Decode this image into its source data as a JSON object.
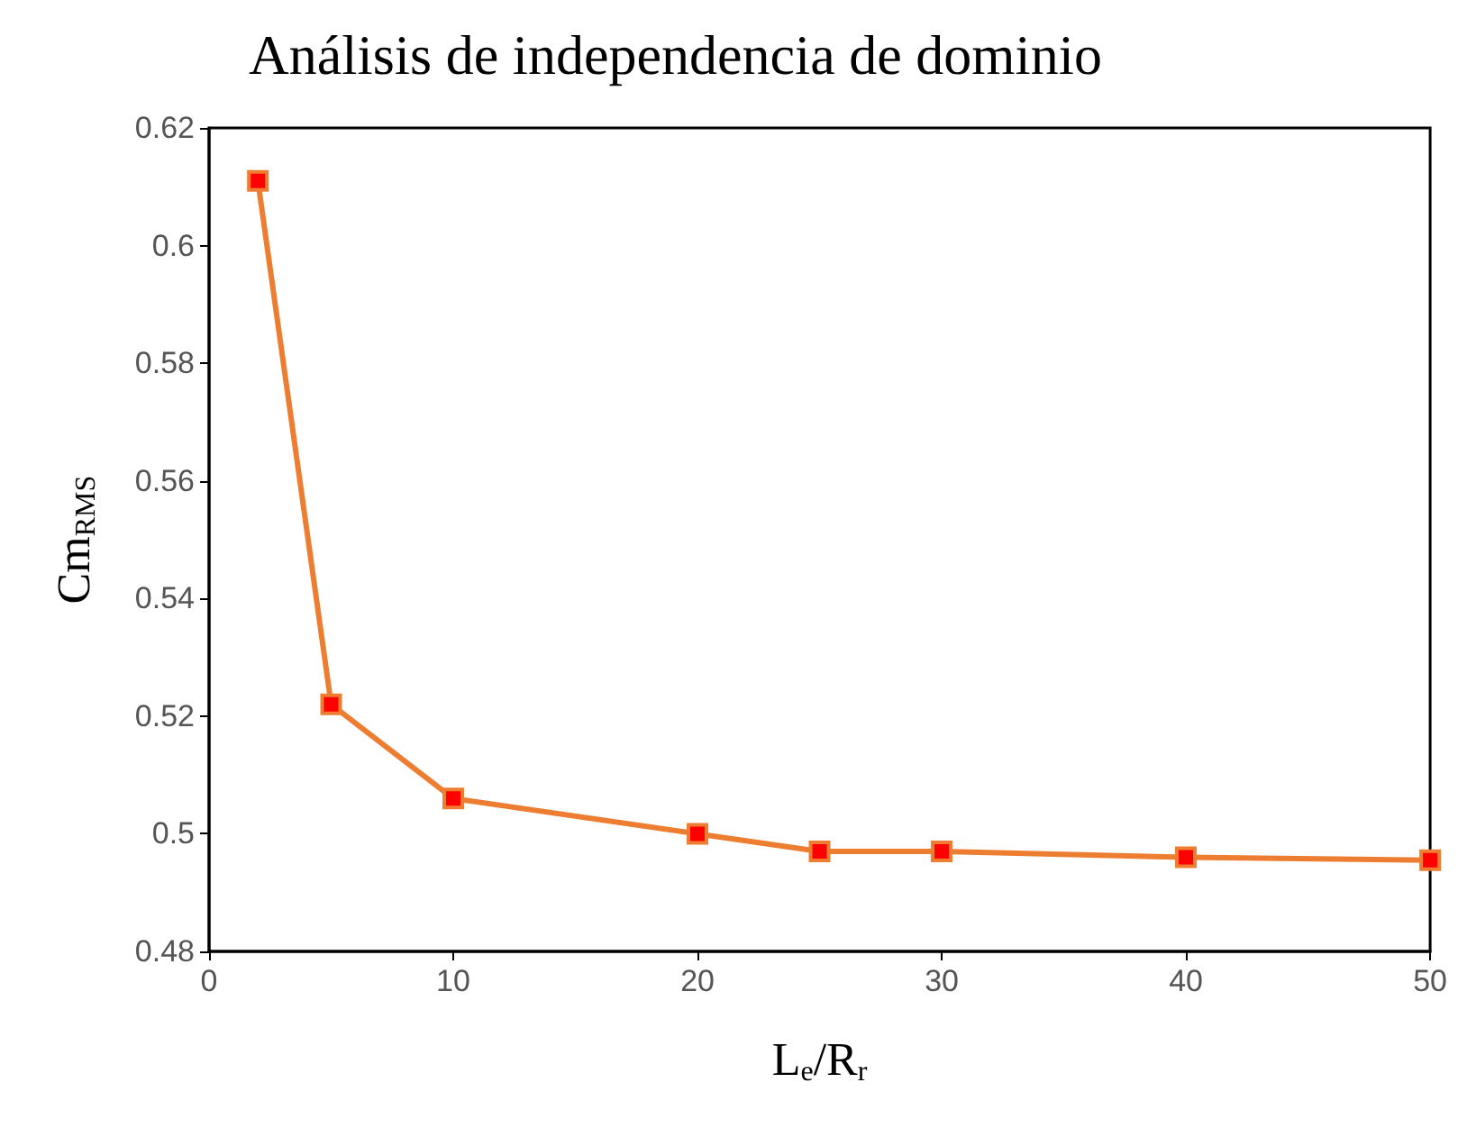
{
  "chart_data": {
    "type": "line",
    "title": "Análisis de independencia de dominio",
    "xlabel": "L$_{e}$/R$_{r}$",
    "ylabel": "Cm$_{RMS}$",
    "x": [
      2,
      5,
      10,
      20,
      25,
      30,
      40,
      50
    ],
    "series": [
      {
        "color": "#ed7d31",
        "values": [
          0.611,
          0.522,
          0.506,
          0.5,
          0.497,
          0.497,
          0.496,
          0.4955
        ]
      }
    ],
    "xlim": [
      0,
      50
    ],
    "xticks": [
      0,
      10,
      20,
      30,
      40,
      50
    ],
    "ylim": [
      0.48,
      0.62
    ],
    "yticks": [
      0.48,
      0.5,
      0.52,
      0.54,
      0.56,
      0.58,
      0.6,
      0.62
    ],
    "grid": false,
    "marker": "square",
    "line_style": "solid"
  }
}
